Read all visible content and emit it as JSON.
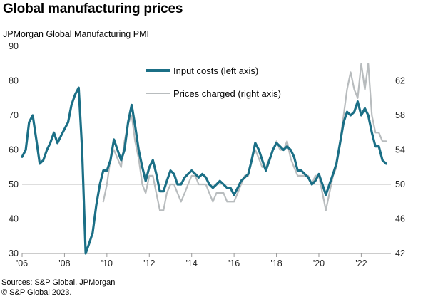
{
  "title": "Global manufacturing prices",
  "subtitle": "JPMorgan Global Manufacturing PMI",
  "source_lines": [
    "Sources: S&P Global, JPMorgan",
    "© S&P Global 2023."
  ],
  "chart_data": {
    "type": "line",
    "x_tick_labels": [
      "'06",
      "'08",
      "'10",
      "'12",
      "'14",
      "'16",
      "'18",
      "'20",
      "'22"
    ],
    "x_tick_years": [
      2006,
      2008,
      2010,
      2012,
      2014,
      2016,
      2018,
      2020,
      2022
    ],
    "xlim": [
      2006,
      2023.4
    ],
    "left_axis": {
      "ylim": [
        30,
        90
      ],
      "ticks": [
        30,
        40,
        50,
        60,
        70,
        80,
        90
      ]
    },
    "right_axis": {
      "ylim": [
        42,
        66
      ],
      "ticks": [
        42,
        46,
        50,
        54,
        58,
        62
      ]
    },
    "reference_line": {
      "axis": "left",
      "value": 50
    },
    "grid": false,
    "legend": {
      "placement": "top-center"
    },
    "series": [
      {
        "name": "Input costs (left axis)",
        "axis": "left",
        "color": "#1b6f86",
        "points": [
          [
            2006.0,
            58
          ],
          [
            2006.17,
            60
          ],
          [
            2006.33,
            68
          ],
          [
            2006.5,
            70
          ],
          [
            2006.67,
            63
          ],
          [
            2006.83,
            56
          ],
          [
            2007.0,
            57
          ],
          [
            2007.17,
            60
          ],
          [
            2007.33,
            62
          ],
          [
            2007.5,
            65
          ],
          [
            2007.67,
            62
          ],
          [
            2007.83,
            64
          ],
          [
            2008.0,
            66
          ],
          [
            2008.17,
            68
          ],
          [
            2008.33,
            73
          ],
          [
            2008.5,
            76
          ],
          [
            2008.67,
            78
          ],
          [
            2008.83,
            60
          ],
          [
            2009.0,
            30
          ],
          [
            2009.17,
            33
          ],
          [
            2009.33,
            36
          ],
          [
            2009.5,
            44
          ],
          [
            2009.67,
            50
          ],
          [
            2009.83,
            54
          ],
          [
            2010.0,
            54
          ],
          [
            2010.17,
            57
          ],
          [
            2010.33,
            63
          ],
          [
            2010.5,
            60
          ],
          [
            2010.67,
            57
          ],
          [
            2010.83,
            60
          ],
          [
            2011.0,
            68
          ],
          [
            2011.17,
            73
          ],
          [
            2011.33,
            67
          ],
          [
            2011.5,
            60
          ],
          [
            2011.67,
            55
          ],
          [
            2011.83,
            51
          ],
          [
            2012.0,
            55
          ],
          [
            2012.17,
            57
          ],
          [
            2012.33,
            53
          ],
          [
            2012.5,
            48
          ],
          [
            2012.67,
            48
          ],
          [
            2012.83,
            51
          ],
          [
            2013.0,
            54
          ],
          [
            2013.17,
            53
          ],
          [
            2013.33,
            50
          ],
          [
            2013.5,
            50
          ],
          [
            2013.67,
            52
          ],
          [
            2013.83,
            53
          ],
          [
            2014.0,
            54
          ],
          [
            2014.17,
            53
          ],
          [
            2014.33,
            52
          ],
          [
            2014.5,
            53
          ],
          [
            2014.67,
            52
          ],
          [
            2014.83,
            50
          ],
          [
            2015.0,
            49
          ],
          [
            2015.17,
            50
          ],
          [
            2015.33,
            51
          ],
          [
            2015.5,
            50
          ],
          [
            2015.67,
            49
          ],
          [
            2015.83,
            49
          ],
          [
            2016.0,
            47
          ],
          [
            2016.17,
            49
          ],
          [
            2016.33,
            51
          ],
          [
            2016.5,
            52
          ],
          [
            2016.67,
            53
          ],
          [
            2016.83,
            57
          ],
          [
            2017.0,
            62
          ],
          [
            2017.17,
            60
          ],
          [
            2017.33,
            57
          ],
          [
            2017.5,
            54
          ],
          [
            2017.67,
            57
          ],
          [
            2017.83,
            60
          ],
          [
            2018.0,
            62
          ],
          [
            2018.17,
            61
          ],
          [
            2018.33,
            60
          ],
          [
            2018.5,
            61
          ],
          [
            2018.67,
            60
          ],
          [
            2018.83,
            58
          ],
          [
            2019.0,
            54
          ],
          [
            2019.17,
            54
          ],
          [
            2019.33,
            53
          ],
          [
            2019.5,
            52
          ],
          [
            2019.67,
            50
          ],
          [
            2019.83,
            51
          ],
          [
            2020.0,
            53
          ],
          [
            2020.17,
            50
          ],
          [
            2020.33,
            47
          ],
          [
            2020.5,
            50
          ],
          [
            2020.67,
            53
          ],
          [
            2020.83,
            56
          ],
          [
            2021.0,
            62
          ],
          [
            2021.17,
            68
          ],
          [
            2021.33,
            71
          ],
          [
            2021.5,
            70
          ],
          [
            2021.67,
            71
          ],
          [
            2021.83,
            74
          ],
          [
            2022.0,
            70
          ],
          [
            2022.17,
            72
          ],
          [
            2022.33,
            70
          ],
          [
            2022.5,
            65
          ],
          [
            2022.67,
            61
          ],
          [
            2022.83,
            61
          ],
          [
            2023.0,
            57
          ],
          [
            2023.17,
            56
          ]
        ]
      },
      {
        "name": "Prices charged (right axis)",
        "axis": "right",
        "color": "#b8bcbe",
        "points": [
          [
            2009.83,
            48
          ],
          [
            2010.0,
            50
          ],
          [
            2010.17,
            53
          ],
          [
            2010.33,
            54
          ],
          [
            2010.5,
            53
          ],
          [
            2010.67,
            52
          ],
          [
            2010.83,
            55
          ],
          [
            2011.0,
            57
          ],
          [
            2011.17,
            58
          ],
          [
            2011.33,
            55
          ],
          [
            2011.5,
            53
          ],
          [
            2011.67,
            50
          ],
          [
            2011.83,
            49
          ],
          [
            2012.0,
            51
          ],
          [
            2012.17,
            51
          ],
          [
            2012.33,
            49
          ],
          [
            2012.5,
            47
          ],
          [
            2012.67,
            47
          ],
          [
            2012.83,
            49
          ],
          [
            2013.0,
            50
          ],
          [
            2013.17,
            50
          ],
          [
            2013.33,
            49
          ],
          [
            2013.5,
            48
          ],
          [
            2013.67,
            49
          ],
          [
            2013.83,
            50
          ],
          [
            2014.0,
            51
          ],
          [
            2014.17,
            51
          ],
          [
            2014.33,
            50
          ],
          [
            2014.5,
            50
          ],
          [
            2014.67,
            50
          ],
          [
            2014.83,
            49
          ],
          [
            2015.0,
            48
          ],
          [
            2015.17,
            49
          ],
          [
            2015.33,
            49
          ],
          [
            2015.5,
            49
          ],
          [
            2015.67,
            48
          ],
          [
            2015.83,
            48
          ],
          [
            2016.0,
            48
          ],
          [
            2016.17,
            49
          ],
          [
            2016.33,
            50
          ],
          [
            2016.5,
            51
          ],
          [
            2016.67,
            51
          ],
          [
            2016.83,
            53
          ],
          [
            2017.0,
            54
          ],
          [
            2017.17,
            53
          ],
          [
            2017.33,
            52
          ],
          [
            2017.5,
            52
          ],
          [
            2017.67,
            53
          ],
          [
            2017.83,
            54
          ],
          [
            2018.0,
            55
          ],
          [
            2018.17,
            54
          ],
          [
            2018.33,
            54
          ],
          [
            2018.5,
            55
          ],
          [
            2018.67,
            53
          ],
          [
            2018.83,
            52
          ],
          [
            2019.0,
            51
          ],
          [
            2019.17,
            51
          ],
          [
            2019.33,
            51
          ],
          [
            2019.5,
            51
          ],
          [
            2019.67,
            50
          ],
          [
            2019.83,
            51
          ],
          [
            2020.0,
            51
          ],
          [
            2020.17,
            49
          ],
          [
            2020.33,
            47
          ],
          [
            2020.5,
            49
          ],
          [
            2020.67,
            51
          ],
          [
            2020.83,
            52
          ],
          [
            2021.0,
            55
          ],
          [
            2021.17,
            58
          ],
          [
            2021.33,
            61
          ],
          [
            2021.5,
            63
          ],
          [
            2021.67,
            61
          ],
          [
            2021.83,
            60
          ],
          [
            2022.0,
            64
          ],
          [
            2022.17,
            61
          ],
          [
            2022.33,
            64
          ],
          [
            2022.5,
            58
          ],
          [
            2022.67,
            56
          ],
          [
            2022.83,
            56
          ],
          [
            2023.0,
            55
          ],
          [
            2023.17,
            55
          ]
        ]
      }
    ]
  }
}
